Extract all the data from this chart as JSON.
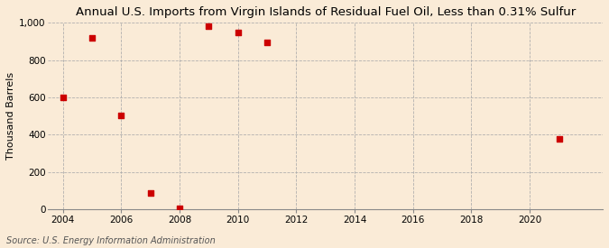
{
  "title": "Annual U.S. Imports from Virgin Islands of Residual Fuel Oil, Less than 0.31% Sulfur",
  "ylabel": "Thousand Barrels",
  "source": "Source: U.S. Energy Information Administration",
  "x_data": [
    2004,
    2005,
    2006,
    2007,
    2008,
    2009,
    2010,
    2011,
    2021
  ],
  "y_data": [
    601,
    921,
    505,
    88,
    2,
    980,
    947,
    893,
    375
  ],
  "marker_color": "#cc0000",
  "marker_size": 18,
  "xlim": [
    2003.5,
    2022.5
  ],
  "ylim": [
    0,
    1000
  ],
  "yticks": [
    0,
    200,
    400,
    600,
    800,
    1000
  ],
  "xticks": [
    2004,
    2006,
    2008,
    2010,
    2012,
    2014,
    2016,
    2018,
    2020
  ],
  "background_color": "#faebd7",
  "grid_color": "#aaaaaa",
  "title_fontsize": 9.5,
  "label_fontsize": 8,
  "tick_fontsize": 7.5,
  "source_fontsize": 7
}
